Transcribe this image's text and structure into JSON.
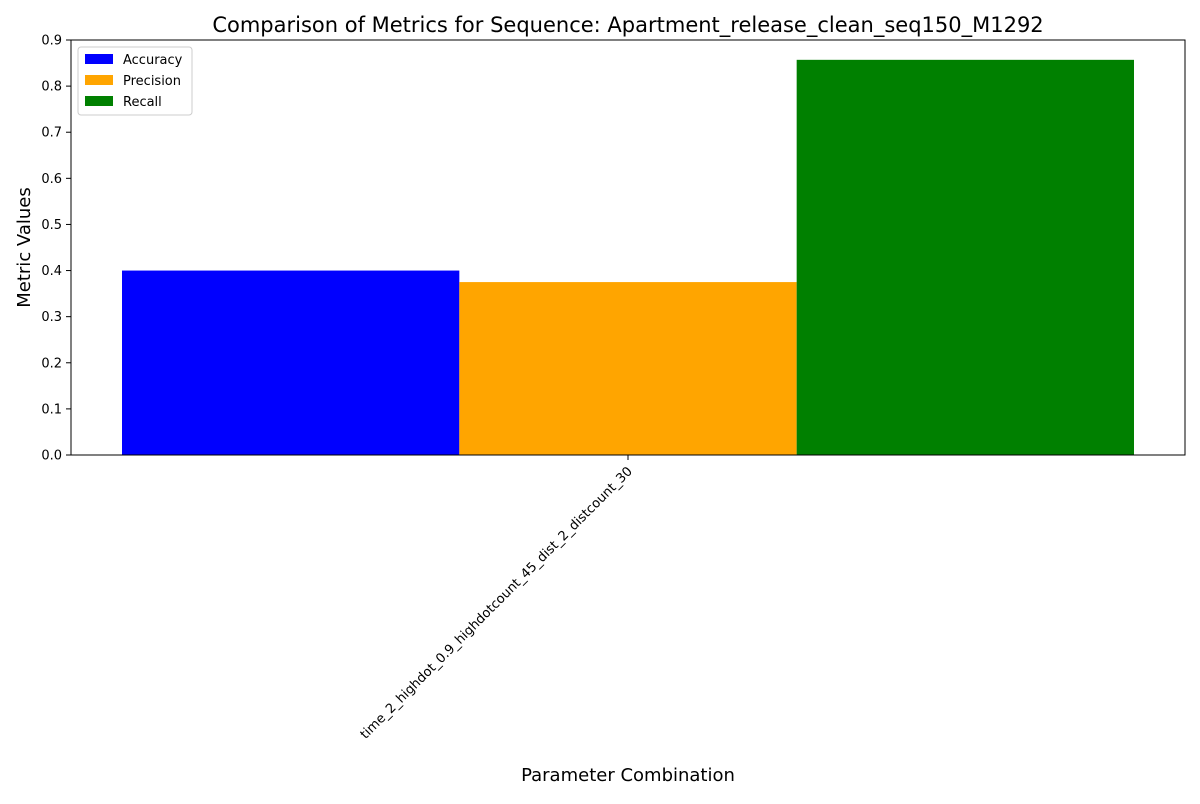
{
  "chart_data": {
    "type": "bar",
    "title": "Comparison of Metrics for Sequence: Apartment_release_clean_seq150_M1292",
    "xlabel": "Parameter Combination",
    "ylabel": "Metric Values",
    "categories": [
      "time_2_highdot_0.9_highdotcount_45_dist_2_distcount_30"
    ],
    "series": [
      {
        "name": "Accuracy",
        "color": "#0000ff",
        "values": [
          0.4
        ]
      },
      {
        "name": "Precision",
        "color": "#ffa500",
        "values": [
          0.375
        ]
      },
      {
        "name": "Recall",
        "color": "#008000",
        "values": [
          0.857
        ]
      }
    ],
    "ylim": [
      0,
      0.9
    ],
    "yticks": [
      "0.0",
      "0.1",
      "0.2",
      "0.3",
      "0.4",
      "0.5",
      "0.6",
      "0.7",
      "0.8",
      "0.9"
    ],
    "grid": false,
    "legend_position": "upper-left"
  }
}
